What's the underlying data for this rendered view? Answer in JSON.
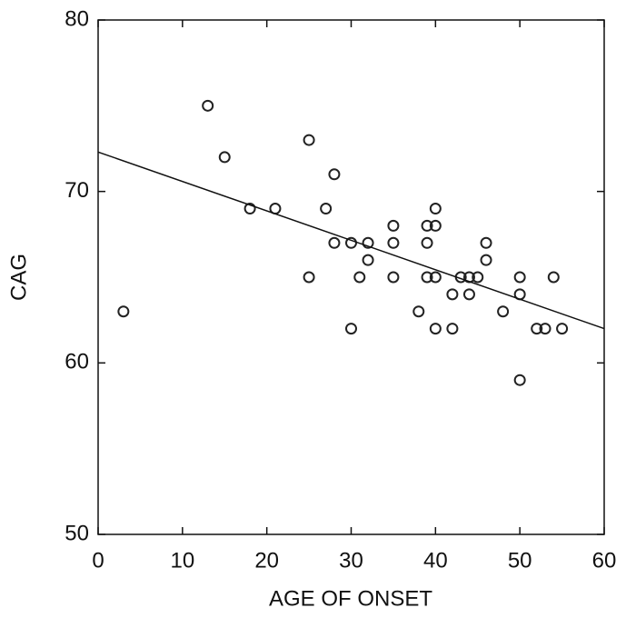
{
  "chart_data": {
    "type": "scatter",
    "xlabel": "AGE OF ONSET",
    "ylabel": "CAG",
    "x": [
      3,
      13,
      15,
      18,
      21,
      25,
      25,
      28,
      27,
      28,
      30,
      30,
      31,
      32,
      32,
      35,
      35,
      35,
      38,
      39,
      39,
      39,
      40,
      40,
      40,
      40,
      42,
      42,
      43,
      44,
      44,
      45,
      46,
      46,
      48,
      50,
      50,
      50,
      52,
      53,
      54,
      55
    ],
    "y": [
      63,
      75,
      72,
      69,
      69,
      73,
      65,
      71,
      69,
      67,
      67,
      62,
      65,
      67,
      66,
      68,
      67,
      65,
      63,
      68,
      67,
      65,
      69,
      68,
      65,
      62,
      64,
      62,
      65,
      65,
      64,
      65,
      67,
      66,
      63,
      65,
      64,
      59,
      62,
      62,
      65,
      62
    ],
    "color": "#222",
    "fit_line": {
      "x": [
        0,
        60
      ],
      "y": [
        72.3,
        62
      ]
    },
    "xlim": [
      0,
      60
    ],
    "xticks": [
      0,
      10,
      20,
      30,
      40,
      50,
      60
    ],
    "ylim": [
      50,
      80
    ],
    "yticks": [
      50,
      60,
      70,
      80
    ]
  }
}
